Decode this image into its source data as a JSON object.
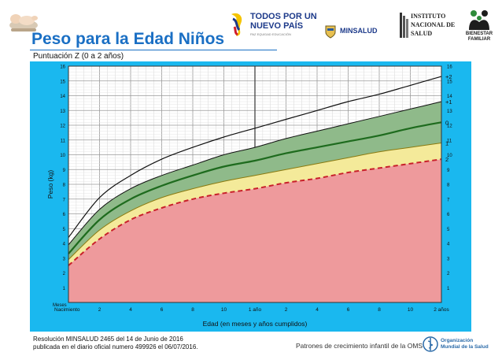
{
  "header": {
    "title": "Peso para la Edad Niños",
    "subtitle": "Puntuación Z (0 a 2 años)"
  },
  "logos": {
    "todos_line1": "TODOS POR UN",
    "todos_line2": "NUEVO PAÍS",
    "todos_tagline": "PAZ  EQUIDAD  EDUCACIÓN",
    "minsalud": "MINSALUD",
    "ins_line1": "INSTITUTO",
    "ins_line2": "NACIONAL DE",
    "ins_line3": "SALUD",
    "bienestar_line1": "BIENESTAR",
    "bienestar_line2": "FAMILIAR",
    "oms_line1": "Organización",
    "oms_line2": "Mundial de la Salud"
  },
  "footer": {
    "resolution": "Resolución MINSALUD 2465 del 14 de Junio de 2016",
    "publication": "publicada en el diario oficial numero 499926 el 06/07/2016.",
    "patterns": "Patrones de crecimiento infantil de la OMS"
  },
  "colors": {
    "panel": "#1ab8ef",
    "red_zone": "#ee9a9c",
    "yellow_zone": "#f4ea9a",
    "green_zone": "#8fba8a",
    "median_line": "#1e6b1e",
    "minus2_line": "#c8202a"
  },
  "chart_data": {
    "type": "line",
    "xlabel": "Edad (en meses y años cumplidos)",
    "ylabel": "Peso (kg)",
    "x_ticks": [
      {
        "month": 0,
        "label": "Nacimiento"
      },
      {
        "month": 2,
        "label": "2"
      },
      {
        "month": 4,
        "label": "4"
      },
      {
        "month": 6,
        "label": "6"
      },
      {
        "month": 8,
        "label": "8"
      },
      {
        "month": 10,
        "label": "10"
      },
      {
        "month": 12,
        "label": "1 año"
      },
      {
        "month": 14,
        "label": "2"
      },
      {
        "month": 16,
        "label": "4"
      },
      {
        "month": 18,
        "label": "6"
      },
      {
        "month": 20,
        "label": "8"
      },
      {
        "month": 22,
        "label": "10"
      },
      {
        "month": 24,
        "label": "2 años"
      }
    ],
    "months_label": "Meses",
    "xlim": [
      0,
      24
    ],
    "ylim": [
      0,
      16
    ],
    "y_ticks_left": [
      "1",
      "2",
      "3",
      "4",
      "5",
      "6",
      "7",
      "8",
      "9",
      "10",
      "11",
      "12",
      "13",
      "14",
      "15",
      "16"
    ],
    "y_ticks_right": [
      "1",
      "2",
      "3",
      "4",
      "5",
      "6",
      "7",
      "8",
      "9",
      "10",
      "11",
      "12",
      "13",
      "14",
      "15",
      "16"
    ],
    "grid": true,
    "series": [
      {
        "name": "+2",
        "points": [
          [
            0,
            4.4
          ],
          [
            2,
            7.1
          ],
          [
            4,
            8.6
          ],
          [
            6,
            9.7
          ],
          [
            8,
            10.5
          ],
          [
            10,
            11.2
          ],
          [
            12,
            11.8
          ],
          [
            14,
            12.4
          ],
          [
            16,
            13.0
          ],
          [
            18,
            13.6
          ],
          [
            20,
            14.1
          ],
          [
            22,
            14.7
          ],
          [
            24,
            15.3
          ]
        ]
      },
      {
        "name": "+1",
        "points": [
          [
            0,
            3.9
          ],
          [
            2,
            6.3
          ],
          [
            4,
            7.7
          ],
          [
            6,
            8.6
          ],
          [
            8,
            9.3
          ],
          [
            10,
            10.0
          ],
          [
            12,
            10.5
          ],
          [
            14,
            11.1
          ],
          [
            16,
            11.6
          ],
          [
            18,
            12.1
          ],
          [
            20,
            12.6
          ],
          [
            22,
            13.1
          ],
          [
            24,
            13.6
          ]
        ]
      },
      {
        "name": "0",
        "points": [
          [
            0,
            3.3
          ],
          [
            2,
            5.6
          ],
          [
            4,
            7.0
          ],
          [
            6,
            7.9
          ],
          [
            8,
            8.6
          ],
          [
            10,
            9.2
          ],
          [
            12,
            9.6
          ],
          [
            14,
            10.1
          ],
          [
            16,
            10.5
          ],
          [
            18,
            10.9
          ],
          [
            20,
            11.3
          ],
          [
            22,
            11.8
          ],
          [
            24,
            12.2
          ]
        ]
      },
      {
        "name": "1",
        "points": [
          [
            0,
            2.9
          ],
          [
            2,
            4.9
          ],
          [
            4,
            6.2
          ],
          [
            6,
            7.1
          ],
          [
            8,
            7.7
          ],
          [
            10,
            8.2
          ],
          [
            12,
            8.6
          ],
          [
            14,
            9.0
          ],
          [
            16,
            9.4
          ],
          [
            18,
            9.8
          ],
          [
            20,
            10.2
          ],
          [
            22,
            10.5
          ],
          [
            24,
            10.8
          ]
        ]
      },
      {
        "name": "2",
        "points": [
          [
            0,
            2.5
          ],
          [
            2,
            4.3
          ],
          [
            4,
            5.6
          ],
          [
            6,
            6.4
          ],
          [
            8,
            7.0
          ],
          [
            10,
            7.4
          ],
          [
            12,
            7.7
          ],
          [
            14,
            8.1
          ],
          [
            16,
            8.4
          ],
          [
            18,
            8.8
          ],
          [
            20,
            9.1
          ],
          [
            22,
            9.4
          ],
          [
            24,
            9.7
          ]
        ]
      }
    ]
  }
}
